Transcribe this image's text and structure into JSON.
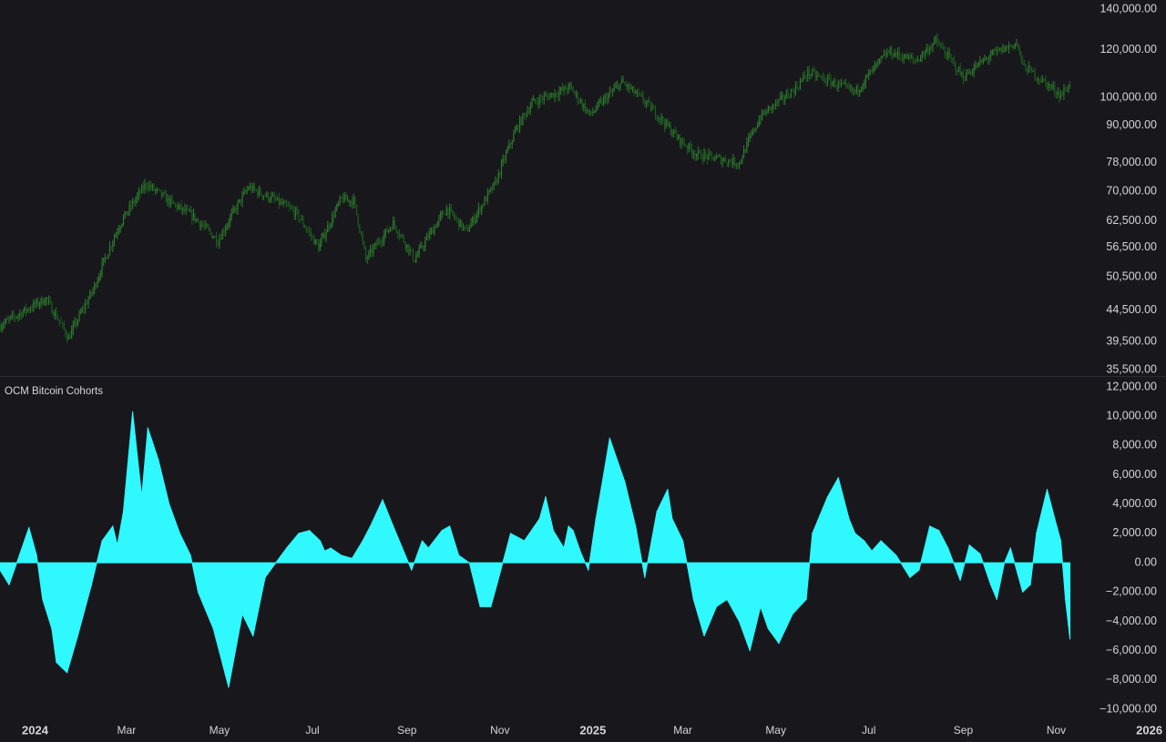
{
  "colors": {
    "background": "#17171c",
    "price_up": "#2f7a2f",
    "price_down": "#1f5a1f",
    "oscillator_fill": "#2ff8ff",
    "axis_text": "#d6d6d6",
    "divider": "#2b2b33"
  },
  "indicator_title": "OCM Bitcoin Cohorts",
  "x_axis_labels": [
    {
      "date": "2024-01-01",
      "label": "2024",
      "bold": true
    },
    {
      "date": "2024-03-01",
      "label": "Mar",
      "bold": false
    },
    {
      "date": "2024-05-01",
      "label": "May",
      "bold": false
    },
    {
      "date": "2024-07-01",
      "label": "Jul",
      "bold": false
    },
    {
      "date": "2024-09-01",
      "label": "Sep",
      "bold": false
    },
    {
      "date": "2024-11-01",
      "label": "Nov",
      "bold": false
    },
    {
      "date": "2025-01-01",
      "label": "2025",
      "bold": true
    },
    {
      "date": "2025-03-01",
      "label": "Mar",
      "bold": false
    },
    {
      "date": "2025-05-01",
      "label": "May",
      "bold": false
    },
    {
      "date": "2025-07-01",
      "label": "Jul",
      "bold": false
    },
    {
      "date": "2025-09-01",
      "label": "Sep",
      "bold": false
    },
    {
      "date": "2025-11-01",
      "label": "Nov",
      "bold": false
    },
    {
      "date": "2026-01-01",
      "label": "2026",
      "bold": true
    }
  ],
  "chart_data": [
    {
      "type": "line",
      "scale": "log",
      "x_range": [
        "2023-12-09",
        "2026-01-12"
      ],
      "ylim": [
        35500,
        140000
      ],
      "y_tick_labels": [
        {
          "value": 140000,
          "label": "140,000.00"
        },
        {
          "value": 120000,
          "label": "120,000.00"
        },
        {
          "value": 100000,
          "label": "100,000.00"
        },
        {
          "value": 90000,
          "label": "90,000.00"
        },
        {
          "value": 78000,
          "label": "78,000.00"
        },
        {
          "value": 70000,
          "label": "70,000.00"
        },
        {
          "value": 62500,
          "label": "62,500.00"
        },
        {
          "value": 56500,
          "label": "56,500.00"
        },
        {
          "value": 50500,
          "label": "50,500.00"
        },
        {
          "value": 44500,
          "label": "44,500.00"
        },
        {
          "value": 39500,
          "label": "39,500.00"
        },
        {
          "value": 35500,
          "label": "35,500.00"
        }
      ],
      "series": [
        {
          "x": [
            "2023-12-09",
            "2024-01-08",
            "2024-01-23",
            "2024-02-08",
            "2024-02-26",
            "2024-03-14",
            "2024-04-01",
            "2024-04-14",
            "2024-04-30",
            "2024-05-20",
            "2024-06-05",
            "2024-06-20",
            "2024-07-05",
            "2024-07-20",
            "2024-07-28",
            "2024-08-05",
            "2024-08-23",
            "2024-09-06",
            "2024-09-27",
            "2024-10-10",
            "2024-10-29",
            "2024-11-12",
            "2024-11-22",
            "2024-12-17",
            "2024-12-30",
            "2025-01-20",
            "2025-02-05",
            "2025-02-26",
            "2025-03-10",
            "2025-04-07",
            "2025-04-21",
            "2025-05-14",
            "2025-05-22",
            "2025-06-22",
            "2025-07-14",
            "2025-08-01",
            "2025-08-14",
            "2025-09-01",
            "2025-09-19",
            "2025-10-06",
            "2025-10-10",
            "2025-10-20",
            "2025-11-04",
            "2025-11-10"
          ],
          "values": [
            42000,
            46500,
            40000,
            48000,
            62000,
            72000,
            66500,
            63500,
            58000,
            71000,
            68000,
            64500,
            56500,
            68000,
            67500,
            54000,
            62000,
            54000,
            65500,
            60000,
            72000,
            89000,
            98000,
            104000,
            93500,
            106000,
            98000,
            85500,
            80500,
            78000,
            93000,
            103500,
            110000,
            102000,
            119000,
            115000,
            124000,
            108000,
            117500,
            123000,
            113000,
            108000,
            101000,
            105000
          ]
        }
      ]
    },
    {
      "type": "area",
      "title": "OCM Bitcoin Cohorts",
      "baseline": 0,
      "ylim": [
        -10000,
        12000
      ],
      "y_tick_labels": [
        {
          "value": 12000,
          "label": "12,000.00"
        },
        {
          "value": 10000,
          "label": "10,000.00"
        },
        {
          "value": 8000,
          "label": "8,000.00"
        },
        {
          "value": 6000,
          "label": "6,000.00"
        },
        {
          "value": 4000,
          "label": "4,000.00"
        },
        {
          "value": 2000,
          "label": "2,000.00"
        },
        {
          "value": 0,
          "label": "0.00"
        },
        {
          "value": -2000,
          "label": "−2,000.00"
        },
        {
          "value": -4000,
          "label": "−4,000.00"
        },
        {
          "value": -6000,
          "label": "−6,000.00"
        },
        {
          "value": -8000,
          "label": "−8,000.00"
        },
        {
          "value": -10000,
          "label": "−10,000.00"
        }
      ],
      "series": [
        {
          "x": [
            "2023-12-09",
            "2023-12-15",
            "2023-12-22",
            "2023-12-28",
            "2024-01-02",
            "2024-01-06",
            "2024-01-12",
            "2024-01-15",
            "2024-01-22",
            "2024-01-29",
            "2024-02-07",
            "2024-02-14",
            "2024-02-21",
            "2024-02-24",
            "2024-02-28",
            "2024-03-05",
            "2024-03-11",
            "2024-03-15",
            "2024-03-22",
            "2024-03-29",
            "2024-04-05",
            "2024-04-12",
            "2024-04-17",
            "2024-04-27",
            "2024-05-07",
            "2024-05-16",
            "2024-05-23",
            "2024-05-31",
            "2024-06-07",
            "2024-06-14",
            "2024-06-22",
            "2024-06-29",
            "2024-07-06",
            "2024-07-09",
            "2024-07-13",
            "2024-07-20",
            "2024-07-27",
            "2024-08-03",
            "2024-08-08",
            "2024-08-16",
            "2024-08-23",
            "2024-08-29",
            "2024-09-02",
            "2024-09-04",
            "2024-09-11",
            "2024-09-15",
            "2024-09-24",
            "2024-09-29",
            "2024-10-05",
            "2024-10-12",
            "2024-10-19",
            "2024-10-26",
            "2024-10-30",
            "2024-11-08",
            "2024-11-17",
            "2024-11-27",
            "2024-12-01",
            "2024-12-06",
            "2024-12-13",
            "2024-12-16",
            "2024-12-19",
            "2024-12-24",
            "2024-12-29",
            "2025-01-03",
            "2025-01-08",
            "2025-01-12",
            "2025-01-22",
            "2025-01-29",
            "2025-02-04",
            "2025-02-12",
            "2025-02-19",
            "2025-02-22",
            "2025-03-01",
            "2025-03-08",
            "2025-03-15",
            "2025-03-23",
            "2025-03-30",
            "2025-04-07",
            "2025-04-14",
            "2025-04-21",
            "2025-04-26",
            "2025-05-03",
            "2025-05-12",
            "2025-05-21",
            "2025-05-25",
            "2025-06-04",
            "2025-06-11",
            "2025-06-18",
            "2025-06-22",
            "2025-06-28",
            "2025-07-03",
            "2025-07-09",
            "2025-07-19",
            "2025-07-28",
            "2025-08-03",
            "2025-08-10",
            "2025-08-16",
            "2025-08-22",
            "2025-08-30",
            "2025-09-05",
            "2025-09-12",
            "2025-09-19",
            "2025-09-23",
            "2025-09-28",
            "2025-10-02",
            "2025-10-10",
            "2025-10-15",
            "2025-10-19",
            "2025-10-26",
            "2025-10-31",
            "2025-11-04",
            "2025-11-07",
            "2025-11-10"
          ],
          "values": [
            -500,
            -1500,
            600,
            2400,
            500,
            -2500,
            -4500,
            -6800,
            -7500,
            -5000,
            -1500,
            1500,
            2500,
            1200,
            3500,
            10300,
            4500,
            9200,
            7000,
            4000,
            2000,
            500,
            -2000,
            -4500,
            -8500,
            -3500,
            -5000,
            -1000,
            0,
            1000,
            2000,
            2200,
            1500,
            800,
            1000,
            500,
            300,
            1500,
            2500,
            4300,
            2500,
            1000,
            0,
            -500,
            1500,
            1000,
            2200,
            2500,
            500,
            0,
            -3000,
            -3000,
            -1500,
            2000,
            1500,
            3000,
            4500,
            2200,
            1000,
            2500,
            2200,
            700,
            -500,
            3000,
            6000,
            8500,
            5500,
            2500,
            -1000,
            3500,
            5000,
            3000,
            1500,
            -2500,
            -5000,
            -3000,
            -2500,
            -4000,
            -6000,
            -3000,
            -4500,
            -5500,
            -3500,
            -2500,
            2000,
            4500,
            5800,
            3000,
            2000,
            1500,
            800,
            1500,
            500,
            -1000,
            -500,
            2500,
            2200,
            1000,
            -1200,
            1200,
            600,
            -1500,
            -2500,
            0,
            1000,
            -2000,
            -1500,
            2000,
            5000,
            3000,
            1500,
            -2500,
            -5200
          ]
        }
      ]
    }
  ]
}
